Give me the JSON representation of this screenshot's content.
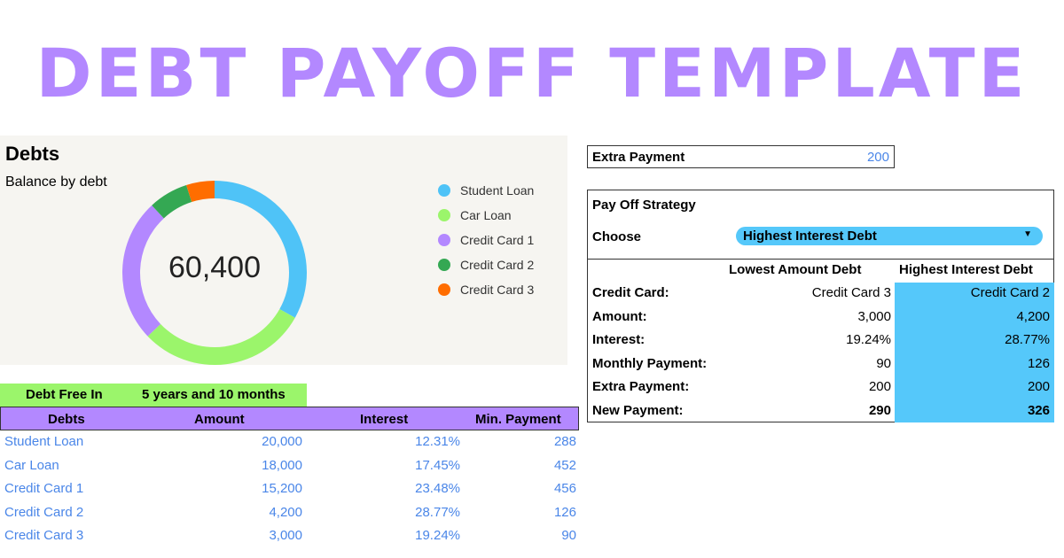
{
  "title": "DEBT PAYOFF TEMPLATE",
  "chart_data": {
    "type": "pie",
    "title": "Debts",
    "subtitle": "Balance by debt",
    "center_label": "60,400",
    "categories": [
      "Student Loan",
      "Car Loan",
      "Credit Card 1",
      "Credit Card 2",
      "Credit Card 3"
    ],
    "values": [
      20000,
      18000,
      15200,
      4200,
      3000
    ],
    "colors": [
      "#4fc3f7",
      "#9bf56b",
      "#b388ff",
      "#34a853",
      "#ff6d00"
    ],
    "legend_position": "right",
    "donut": true
  },
  "debt_free": {
    "label": "Debt Free In",
    "value": "5 years and 10 months"
  },
  "debts_table": {
    "headers": [
      "Debts",
      "Amount",
      "Interest",
      "Min. Payment"
    ],
    "rows": [
      [
        "Student Loan",
        "20,000",
        "12.31%",
        "288"
      ],
      [
        "Car Loan",
        "18,000",
        "17.45%",
        "452"
      ],
      [
        "Credit Card 1",
        "15,200",
        "23.48%",
        "456"
      ],
      [
        "Credit Card 2",
        "4,200",
        "28.77%",
        "126"
      ],
      [
        "Credit Card 3",
        "3,000",
        "19.24%",
        "90"
      ]
    ]
  },
  "extra_payment": {
    "label": "Extra Payment",
    "value": "200"
  },
  "strategy": {
    "title": "Pay Off Strategy",
    "choose_label": "Choose",
    "selected": "Highest Interest Debt",
    "highlight_color": "#55c8fa",
    "columns": [
      "Lowest Amount Debt",
      "Highest Interest Debt"
    ],
    "rows": [
      [
        "Credit Card:",
        "Credit Card 3",
        "Credit Card 2"
      ],
      [
        "Amount:",
        "3,000",
        "4,200"
      ],
      [
        "Interest:",
        "19.24%",
        "28.77%"
      ],
      [
        "Monthly Payment:",
        "90",
        "126"
      ],
      [
        "Extra Payment:",
        "200",
        "200"
      ],
      [
        "New Payment:",
        "290",
        "326"
      ]
    ]
  }
}
